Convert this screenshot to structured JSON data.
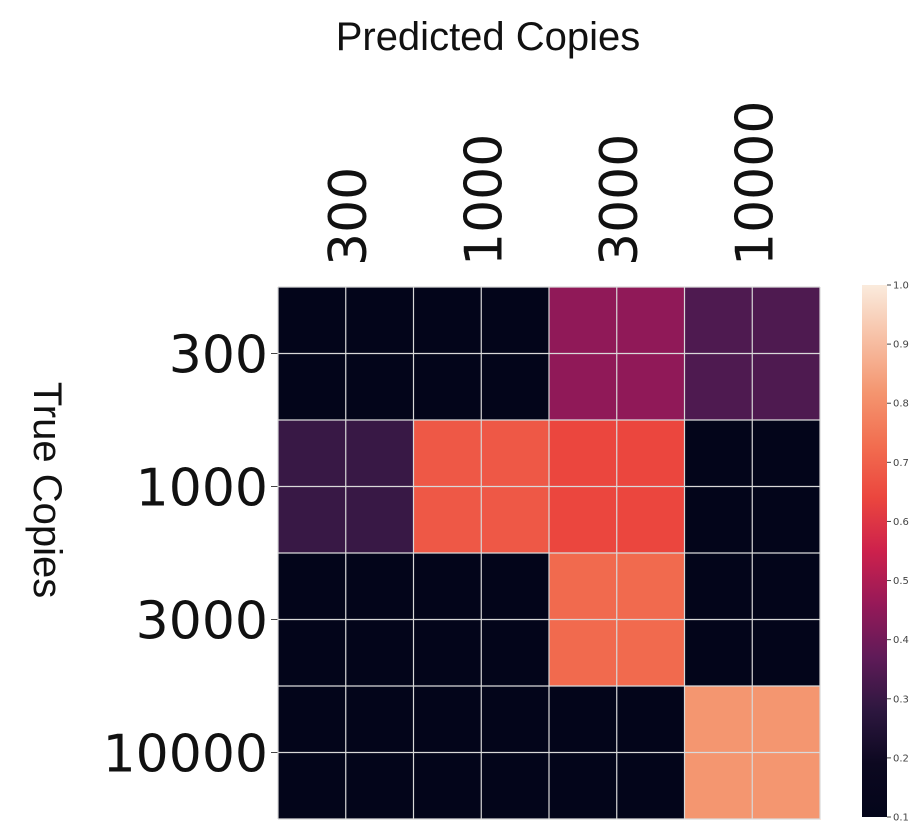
{
  "chart_data": {
    "type": "heatmap",
    "title": "Predicted Copies",
    "xlabel": "Predicted Copies",
    "ylabel": "True Copies",
    "x_categories": [
      "300",
      "1000",
      "3000",
      "10000"
    ],
    "y_categories": [
      "300",
      "1000",
      "3000",
      "10000"
    ],
    "values": [
      [
        0.1,
        0.1,
        0.45,
        0.34
      ],
      [
        0.3,
        0.68,
        0.64,
        0.1
      ],
      [
        0.1,
        0.1,
        0.72,
        0.1
      ],
      [
        0.1,
        0.1,
        0.1,
        0.82
      ]
    ],
    "colorbar": {
      "min": 0.1,
      "max": 1.0,
      "ticks": [
        "0.1",
        "0.2",
        "0.3",
        "0.4",
        "0.5",
        "0.6",
        "0.7",
        "0.8",
        "0.9",
        "1.0"
      ],
      "colormap": "rocket"
    },
    "grid": true
  }
}
